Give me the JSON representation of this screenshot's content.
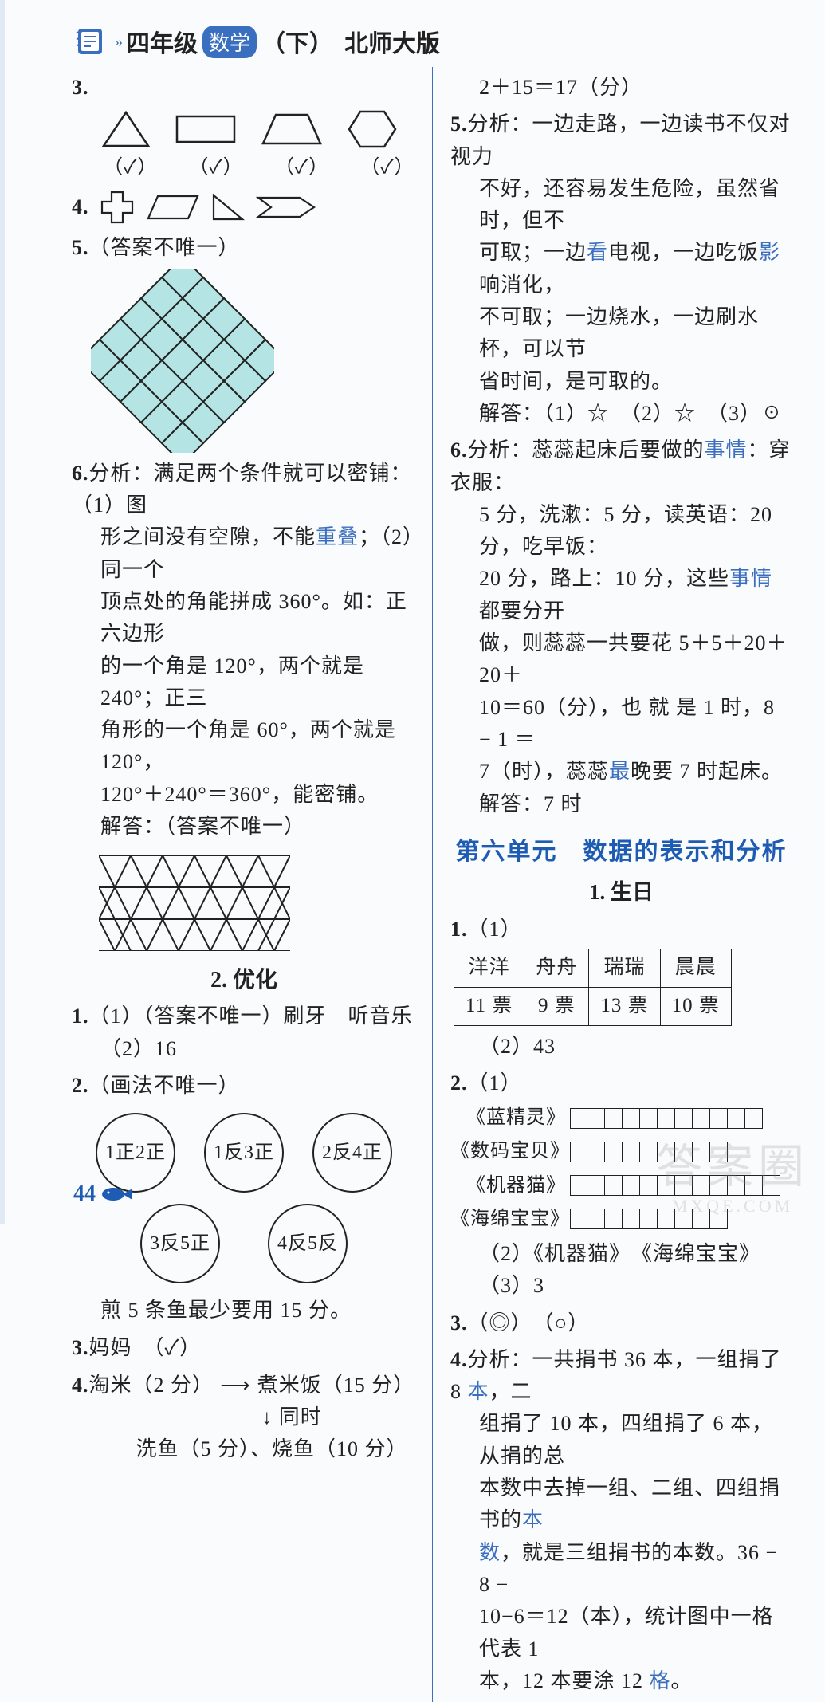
{
  "header": {
    "grade": "四年级",
    "subject": "数学",
    "term": "（下）",
    "edition": "北师大版"
  },
  "left": {
    "q3": {
      "num": "3.",
      "checks": [
        "（✓）",
        "（✓）",
        "（✓）",
        "（✓）"
      ]
    },
    "q4": {
      "num": "4."
    },
    "q5": {
      "num": "5.",
      "text": "（答案不唯一）"
    },
    "q6": {
      "num": "6.",
      "l1": "分析：满足两个条件就可以密铺：（1）图",
      "l2": "形之间没有空隙，不能",
      "l2b": "重叠",
      "l2c": "；（2）同一个",
      "l3": "顶点处的角能拼成 360°。如：正六边形",
      "l4": "的一个角是 120°，两个就是 240°；正三",
      "l5": "角形的一个角是 60°，两个就是 120°，",
      "l6": "120°＋240°＝360°，能密铺。",
      "ans_label": "解答：（答案不唯一）"
    },
    "sec2_title": "2. 优化",
    "s2q1": {
      "num": "1.",
      "a": "（1）（答案不唯一）刷牙　听音乐",
      "b": "（2）16"
    },
    "s2q2": {
      "num": "2.",
      "text": "（画法不唯一）",
      "c1": "1正2正",
      "c2": "1反3正",
      "c3": "2反4正",
      "c4": "3反5正",
      "c5": "4反5反",
      "note": "煎 5 条鱼最少要用 15 分。"
    },
    "s2q3": {
      "num": "3.",
      "text": "妈妈　（✓）"
    },
    "s2q4": {
      "num": "4.",
      "l1a": "淘米（2 分）",
      "l1arrow": " ⟶ ",
      "l1b": "煮米饭（15 分）",
      "l2": "↓ 同时",
      "l3": "洗鱼（5 分）、烧鱼（10 分）"
    }
  },
  "right": {
    "top": "2＋15＝17（分）",
    "q5": {
      "num": "5.",
      "l1": "分析：一边走路，一边读书不仅对视力",
      "l2": "不好，还容易发生危险，虽然省时，但不",
      "l3a": "可取；一边",
      "l3b": "看",
      "l3c": "电视，一边吃饭",
      "l3d": "影",
      "l3e": "响消化，",
      "l4": "不可取；一边烧水，一边刷水杯，可以节",
      "l5": "省时间，是可取的。",
      "ans": "解答：（1）☆　（2）☆　（3）☉"
    },
    "q6": {
      "num": "6.",
      "l1a": "分析：蕊蕊起床后要做的",
      "l1b": "事情",
      "l1c": "：穿衣服：",
      "l2": "5 分，洗漱：5 分，读英语：20 分，吃早饭：",
      "l3a": "20 分，路上：10 分，这些",
      "l3b": "事情",
      "l3c": "都要分开",
      "l4": "做，则蕊蕊一共要花 5＋5＋20＋20＋",
      "l5": "10＝60（分），也 就 是 1 时，8 − 1 ＝",
      "l6a": "7（时），蕊蕊",
      "l6b": "最",
      "l6c": "晚要 7 时起床。",
      "ans": "解答：7 时"
    },
    "unit_title": "第六单元　数据的表示和分析",
    "lesson": "1. 生日",
    "u6q1": {
      "num": "1.",
      "p1": "（1）",
      "head": [
        "洋洋",
        "舟舟",
        "瑞瑞",
        "晨晨"
      ],
      "row": [
        "11 票",
        "9 票",
        "13 票",
        "10 票"
      ],
      "p2": "（2）43"
    },
    "u6q2": {
      "num": "2.",
      "p": "（1）",
      "bars": [
        {
          "label": "《蓝精灵》",
          "n": 11
        },
        {
          "label": "《数码宝贝》",
          "n": 9
        },
        {
          "label": "《机器猫》",
          "n": 12
        },
        {
          "label": "《海绵宝宝》",
          "n": 9
        }
      ],
      "p2": "（2）《机器猫》　《海绵宝宝》　（3）3"
    },
    "u6q3": {
      "num": "3.",
      "text": "（◎）　（○）"
    },
    "u6q4": {
      "num": "4.",
      "l1a": "分析：一共捐书 36 本，一组捐了 8 ",
      "l1b": "本",
      "l1c": "，二",
      "l2": "组捐了 10 本，四组捐了 6 本，从捐的总",
      "l3a": "本数中去掉一组、二组、四组捐书的",
      "l3b": "本",
      "l4a": "数",
      "l4b": "，就是三组捐书的本数。36 − 8 −",
      "l5": "10−6＝12（本），统计图中一格代表 1",
      "l6a": "本，12 本要涂 12 ",
      "l6b": "格",
      "l6c": "。"
    }
  },
  "footer": {
    "page": "44"
  },
  "colors": {
    "accent": "#3a6fbf",
    "diamond_fill": "#b4e4e4"
  }
}
